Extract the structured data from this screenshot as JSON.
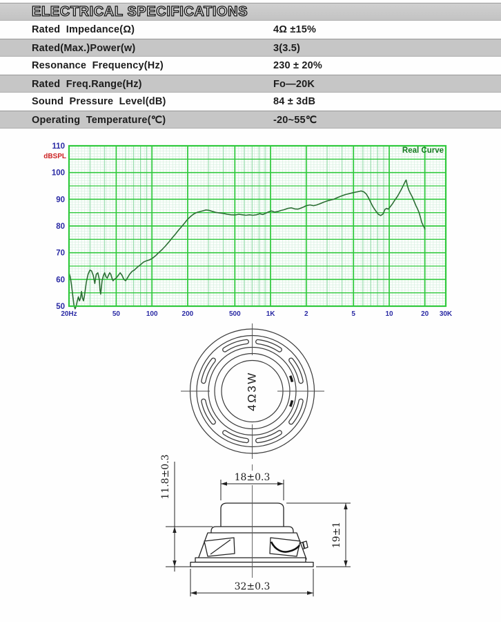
{
  "header": {
    "title": "ELECTRICAL SPECIFICATIONS"
  },
  "spec_table": {
    "rows": [
      {
        "label": "Rated  Impedance(Ω)",
        "value": "4Ω ±15%"
      },
      {
        "label": "Rated(Max.)Power(w)",
        "value": "3(3.5)"
      },
      {
        "label": "Resonance  Frequency(Hz)",
        "value": "230 ± 20%"
      },
      {
        "label": "Rated  Freq.Range(Hz)",
        "value": "Fo—20K"
      },
      {
        "label": "Sound  Pressure  Level(dB)",
        "value": "84 ± 3dB"
      },
      {
        "label": "Operating  Temperature(℃)",
        "value": "-20~55℃"
      }
    ]
  },
  "chart_data": {
    "type": "line",
    "title": "Real Curve",
    "ylabel": "dBSPL",
    "x_scale": "log",
    "x_range_hz": [
      20,
      30000
    ],
    "y_range_db": [
      50,
      110
    ],
    "y_ticks": [
      110,
      100,
      90,
      80,
      70,
      60,
      50
    ],
    "x_ticks": [
      {
        "hz": 20,
        "label": "20Hz"
      },
      {
        "hz": 50,
        "label": "50"
      },
      {
        "hz": 100,
        "label": "100"
      },
      {
        "hz": 200,
        "label": "200"
      },
      {
        "hz": 500,
        "label": "500"
      },
      {
        "hz": 1000,
        "label": "1K"
      },
      {
        "hz": 2000,
        "label": "2"
      },
      {
        "hz": 5000,
        "label": "5"
      },
      {
        "hz": 10000,
        "label": "10"
      },
      {
        "hz": 20000,
        "label": "20"
      },
      {
        "hz": 30000,
        "label": "30K"
      }
    ],
    "grid": "log graph paper, major 5dB lines, fine 1dB lines, minor log frequency lines",
    "legend_position": "top-right-inside",
    "colors": {
      "grid_major": "#2fc93c",
      "grid_mid": "#90dba6",
      "grid_fine": "#d6efdf",
      "curve": "#2b6e33",
      "tick_label": "#2a2aa4",
      "ylabel_color": "#cc2222",
      "title_color": "#147a1e",
      "bg": "#fdfffd"
    },
    "series": [
      {
        "name": "Real Curve",
        "points": [
          [
            20,
            62.5
          ],
          [
            20.5,
            61
          ],
          [
            21,
            58
          ],
          [
            21.5,
            54
          ],
          [
            22,
            50.5
          ],
          [
            22.5,
            49
          ],
          [
            23,
            50
          ],
          [
            23.5,
            52
          ],
          [
            24,
            53.5
          ],
          [
            24.5,
            52
          ],
          [
            25,
            53
          ],
          [
            25.5,
            55.5
          ],
          [
            26,
            53
          ],
          [
            26.5,
            52
          ],
          [
            27,
            54
          ],
          [
            27.5,
            56.5
          ],
          [
            28,
            59
          ],
          [
            29,
            62
          ],
          [
            30,
            63.5
          ],
          [
            31,
            63.2
          ],
          [
            32,
            61.5
          ],
          [
            33,
            58.5
          ],
          [
            33.5,
            60.5
          ],
          [
            34,
            62
          ],
          [
            35,
            62.5
          ],
          [
            36,
            60
          ],
          [
            36.5,
            56
          ],
          [
            37,
            54.5
          ],
          [
            37.5,
            57
          ],
          [
            38,
            59.5
          ],
          [
            39,
            61.5
          ],
          [
            40,
            62.5
          ],
          [
            41,
            61
          ],
          [
            42,
            60.5
          ],
          [
            43,
            61.5
          ],
          [
            44,
            62.5
          ],
          [
            45,
            62
          ],
          [
            46,
            60.5
          ],
          [
            47,
            59.5
          ],
          [
            48,
            60
          ],
          [
            50,
            60.5
          ],
          [
            52,
            61.5
          ],
          [
            54,
            62.5
          ],
          [
            56,
            61.5
          ],
          [
            58,
            60
          ],
          [
            60,
            59.5
          ],
          [
            62,
            60.5
          ],
          [
            65,
            62
          ],
          [
            68,
            63
          ],
          [
            71,
            63.5
          ],
          [
            75,
            64.5
          ],
          [
            80,
            65.5
          ],
          [
            85,
            66.5
          ],
          [
            90,
            67
          ],
          [
            95,
            67.3
          ],
          [
            100,
            67.8
          ],
          [
            107,
            68.8
          ],
          [
            114,
            70
          ],
          [
            122,
            71.2
          ],
          [
            130,
            72.5
          ],
          [
            139,
            74
          ],
          [
            148,
            75.5
          ],
          [
            158,
            77
          ],
          [
            168,
            78.5
          ],
          [
            180,
            80
          ],
          [
            190,
            81.3
          ],
          [
            200,
            82.5
          ],
          [
            212,
            83.6
          ],
          [
            225,
            84.5
          ],
          [
            240,
            85.1
          ],
          [
            255,
            85.4
          ],
          [
            270,
            85.7
          ],
          [
            285,
            86
          ],
          [
            300,
            85.9
          ],
          [
            320,
            85.5
          ],
          [
            345,
            85.1
          ],
          [
            370,
            84.9
          ],
          [
            400,
            84.7
          ],
          [
            430,
            84.4
          ],
          [
            465,
            84.2
          ],
          [
            500,
            84.1
          ],
          [
            540,
            84.4
          ],
          [
            580,
            84.2
          ],
          [
            620,
            84
          ],
          [
            665,
            84.2
          ],
          [
            710,
            84
          ],
          [
            760,
            84.2
          ],
          [
            810,
            84.6
          ],
          [
            860,
            84.3
          ],
          [
            915,
            84.8
          ],
          [
            965,
            85.3
          ],
          [
            1020,
            85.6
          ],
          [
            1080,
            85.2
          ],
          [
            1150,
            85.4
          ],
          [
            1220,
            85.8
          ],
          [
            1300,
            86.1
          ],
          [
            1400,
            86.6
          ],
          [
            1500,
            86.8
          ],
          [
            1600,
            86.4
          ],
          [
            1700,
            86.3
          ],
          [
            1800,
            86.7
          ],
          [
            1900,
            87.1
          ],
          [
            2000,
            87.6
          ],
          [
            2150,
            87.9
          ],
          [
            2300,
            87.6
          ],
          [
            2450,
            87.9
          ],
          [
            2600,
            88.3
          ],
          [
            2800,
            88.9
          ],
          [
            3000,
            89.4
          ],
          [
            3200,
            89.7
          ],
          [
            3400,
            90
          ],
          [
            3700,
            90.7
          ],
          [
            4000,
            91.3
          ],
          [
            4300,
            91.8
          ],
          [
            4700,
            92.2
          ],
          [
            5000,
            92.5
          ],
          [
            5400,
            92.8
          ],
          [
            5800,
            93.1
          ],
          [
            6100,
            92.8
          ],
          [
            6400,
            92
          ],
          [
            6700,
            90.5
          ],
          [
            7000,
            88.8
          ],
          [
            7300,
            87.2
          ],
          [
            7700,
            85.6
          ],
          [
            8100,
            84.4
          ],
          [
            8500,
            83.9
          ],
          [
            8900,
            84.6
          ],
          [
            9200,
            86.2
          ],
          [
            9500,
            86.6
          ],
          [
            9800,
            86.3
          ],
          [
            10200,
            87.2
          ],
          [
            10700,
            88.4
          ],
          [
            11200,
            89.8
          ],
          [
            11700,
            91
          ],
          [
            12200,
            92.4
          ],
          [
            12700,
            93.8
          ],
          [
            13200,
            95.3
          ],
          [
            13700,
            96.8
          ],
          [
            13900,
            97.2
          ],
          [
            14200,
            95.2
          ],
          [
            14600,
            93.6
          ],
          [
            15000,
            92.4
          ],
          [
            15600,
            91
          ],
          [
            16200,
            89.3
          ],
          [
            16800,
            87.6
          ],
          [
            17300,
            86.5
          ],
          [
            17800,
            85.2
          ],
          [
            18300,
            83.4
          ],
          [
            18800,
            81.4
          ],
          [
            19300,
            80.2
          ],
          [
            19800,
            79.4
          ],
          [
            20000,
            78.8
          ]
        ]
      }
    ]
  },
  "top_view": {
    "center_label": "4Ω3W"
  },
  "side_view": {
    "dim_top_width": "18±0.3",
    "dim_left_height": "11.8±0.3",
    "dim_right_height": "19±1",
    "dim_bottom_width": "32±0.3"
  }
}
